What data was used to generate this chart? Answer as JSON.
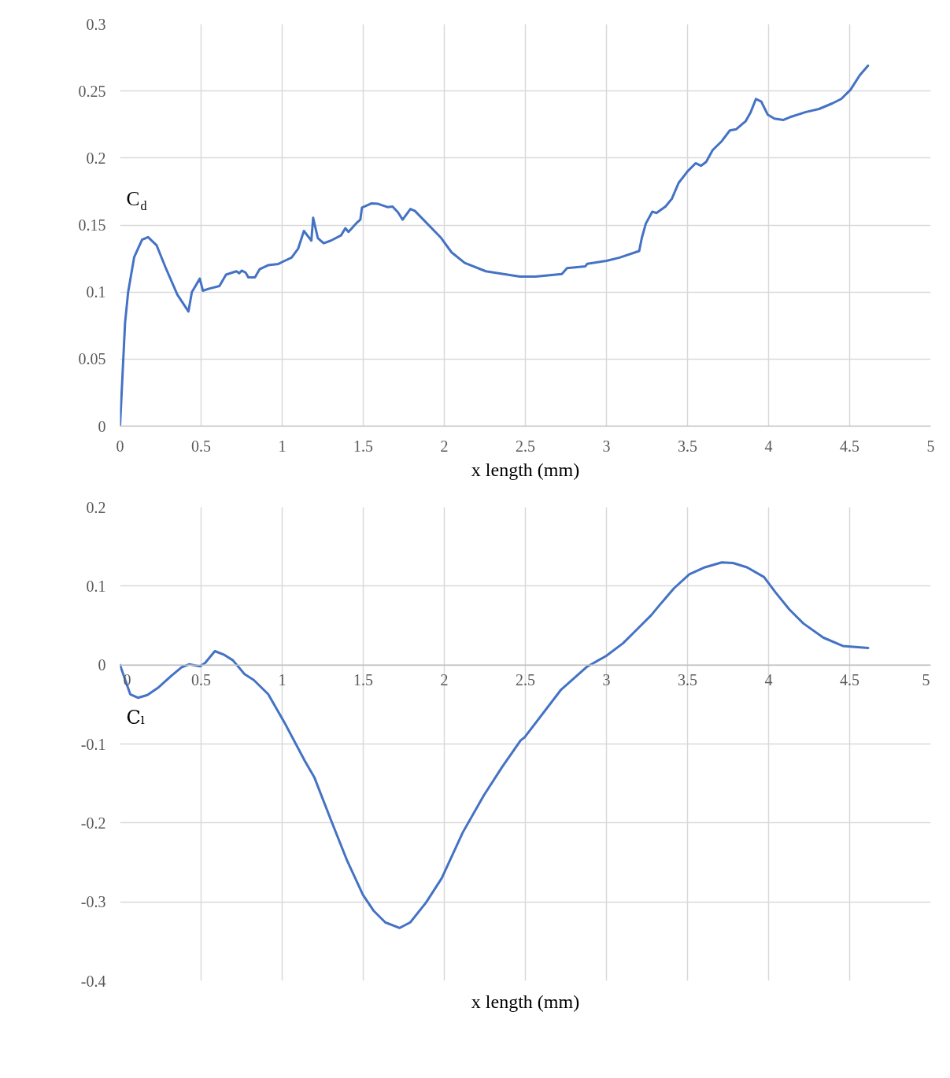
{
  "chart_data": [
    {
      "type": "line",
      "xlabel": "x length (mm)",
      "ylabel": "C$_{d}$",
      "color": "#4472c4",
      "grid": true,
      "xlim": [
        0,
        5
      ],
      "ylim": [
        0,
        0.3
      ],
      "xticks": [
        0,
        0.5,
        1,
        1.5,
        2,
        2.5,
        3,
        3.5,
        4,
        4.5,
        5
      ],
      "yticks": [
        0,
        0.05,
        0.1,
        0.15,
        0.2,
        0.25,
        0.3
      ],
      "x": [
        0,
        0.031,
        0.05,
        0.087,
        0.136,
        0.173,
        0.225,
        0.282,
        0.354,
        0.422,
        0.443,
        0.492,
        0.511,
        0.549,
        0.613,
        0.654,
        0.718,
        0.735,
        0.751,
        0.775,
        0.791,
        0.832,
        0.861,
        0.913,
        0.977,
        1.01,
        1.058,
        1.099,
        1.134,
        1.18,
        1.191,
        1.22,
        1.256,
        1.301,
        1.363,
        1.39,
        1.409,
        1.463,
        1.482,
        1.492,
        1.552,
        1.592,
        1.649,
        1.681,
        1.714,
        1.743,
        1.791,
        1.819,
        1.981,
        2.045,
        2.126,
        2.256,
        2.466,
        2.563,
        2.725,
        2.757,
        2.87,
        2.882,
        3.0,
        3.081,
        3.202,
        3.218,
        3.243,
        3.283,
        3.308,
        3.364,
        3.404,
        3.445,
        3.502,
        3.55,
        3.583,
        3.615,
        3.655,
        3.712,
        3.761,
        3.801,
        3.858,
        3.89,
        3.922,
        3.955,
        3.995,
        4.036,
        4.092,
        4.141,
        4.23,
        4.311,
        4.392,
        4.448,
        4.505,
        4.562,
        4.613
      ],
      "values": [
        0,
        0.077,
        0.1,
        0.126,
        0.139,
        0.141,
        0.135,
        0.118,
        0.098,
        0.0855,
        0.1,
        0.11,
        0.101,
        0.1025,
        0.1045,
        0.113,
        0.1155,
        0.114,
        0.116,
        0.1145,
        0.111,
        0.111,
        0.117,
        0.12,
        0.121,
        0.123,
        0.1257,
        0.1325,
        0.1456,
        0.1384,
        0.1554,
        0.1403,
        0.1364,
        0.1384,
        0.1423,
        0.1476,
        0.1449,
        0.152,
        0.154,
        0.163,
        0.1662,
        0.1658,
        0.1634,
        0.1638,
        0.1595,
        0.154,
        0.162,
        0.1605,
        0.1403,
        0.1296,
        0.1217,
        0.1155,
        0.1116,
        0.1116,
        0.1135,
        0.1178,
        0.1192,
        0.1211,
        0.1233,
        0.1257,
        0.1306,
        0.1403,
        0.1511,
        0.16,
        0.159,
        0.1638,
        0.1697,
        0.1814,
        0.1903,
        0.1961,
        0.1942,
        0.1971,
        0.2059,
        0.2127,
        0.2206,
        0.2215,
        0.2274,
        0.2343,
        0.2441,
        0.2421,
        0.2323,
        0.2294,
        0.2284,
        0.2309,
        0.2343,
        0.2366,
        0.2407,
        0.2441,
        0.2509,
        0.2617,
        0.2689
      ]
    },
    {
      "type": "line",
      "xlabel": "x length (mm)",
      "ylabel": "Cₗ",
      "color": "#4472c4",
      "grid": true,
      "xlim": [
        0,
        5
      ],
      "ylim": [
        -0.4,
        0.2
      ],
      "xticks": [
        0,
        0.5,
        1,
        1.5,
        2,
        2.5,
        3,
        3.5,
        4,
        4.5,
        5
      ],
      "yticks": [
        -0.4,
        -0.3,
        -0.2,
        -0.1,
        0,
        0.1,
        0.2
      ],
      "x": [
        0,
        0.063,
        0.112,
        0.169,
        0.233,
        0.315,
        0.379,
        0.428,
        0.493,
        0.525,
        0.585,
        0.639,
        0.696,
        0.768,
        0.825,
        0.914,
        1.012,
        1.141,
        1.198,
        1.304,
        1.401,
        1.498,
        1.563,
        1.636,
        1.725,
        1.79,
        1.887,
        1.984,
        2.114,
        2.244,
        2.357,
        2.471,
        2.495,
        2.721,
        2.877,
        2.999,
        3.103,
        3.19,
        3.277,
        3.32,
        3.416,
        3.511,
        3.607,
        3.711,
        3.781,
        3.867,
        3.972,
        4.041,
        4.128,
        4.215,
        4.337,
        4.458,
        4.614
      ],
      "values": [
        0,
        -0.037,
        -0.0415,
        -0.038,
        -0.029,
        -0.014,
        -0.003,
        0.001,
        -0.0017,
        0.0027,
        0.0176,
        0.0133,
        0.006,
        -0.0116,
        -0.019,
        -0.037,
        -0.072,
        -0.122,
        -0.142,
        -0.198,
        -0.248,
        -0.291,
        -0.311,
        -0.326,
        -0.333,
        -0.326,
        -0.301,
        -0.27,
        -0.212,
        -0.165,
        -0.129,
        -0.0954,
        -0.0916,
        -0.031,
        -0.0026,
        0.0117,
        0.0277,
        0.0455,
        0.0633,
        0.074,
        0.0971,
        0.115,
        0.1238,
        0.13,
        0.1292,
        0.1238,
        0.1114,
        0.0925,
        0.0704,
        0.0526,
        0.0348,
        0.0241,
        0.0216
      ]
    }
  ]
}
